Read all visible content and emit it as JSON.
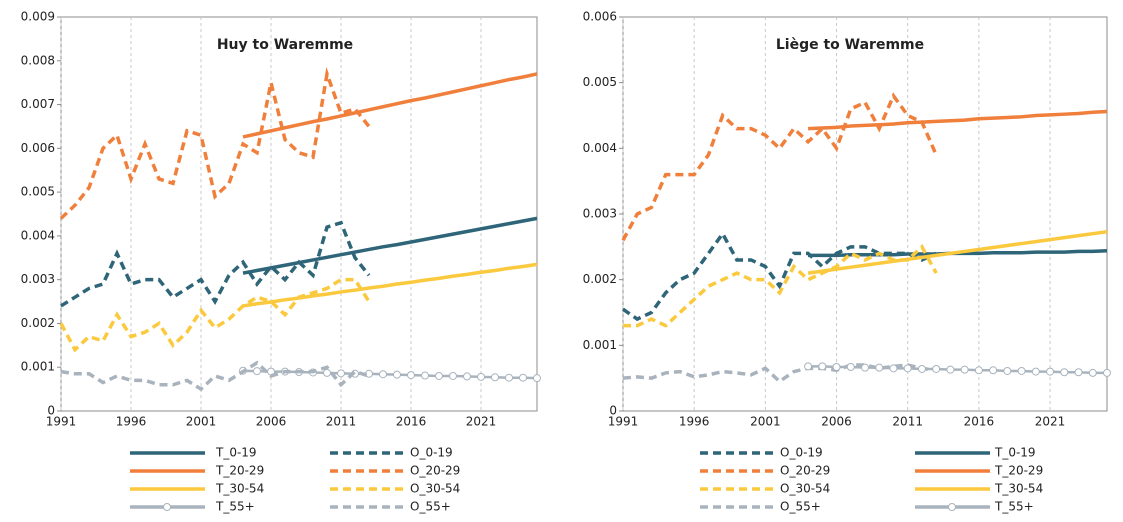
{
  "chart_data": [
    {
      "type": "line",
      "title": "Huy to Waremme",
      "x": [
        1991,
        1992,
        1993,
        1994,
        1995,
        1996,
        1997,
        1998,
        1999,
        2000,
        2001,
        2002,
        2003,
        2004,
        2005,
        2006,
        2007,
        2008,
        2009,
        2010,
        2011,
        2012,
        2013,
        2014,
        2015,
        2016,
        2017,
        2018,
        2019,
        2020,
        2021,
        2022,
        2023,
        2024,
        2025
      ],
      "xlim": [
        1991,
        2025
      ],
      "xticks": [
        1991,
        1996,
        2001,
        2006,
        2011,
        2016,
        2021
      ],
      "ylim": [
        0,
        0.009
      ],
      "yticks": [
        0,
        0.001,
        0.002,
        0.003,
        0.004,
        0.005,
        0.006,
        0.007,
        0.008,
        0.009
      ],
      "grid": "x",
      "series": [
        {
          "name": "T_0-19",
          "color": "#2f6579",
          "style": "solid",
          "values": [
            null,
            null,
            null,
            null,
            null,
            null,
            null,
            null,
            null,
            null,
            null,
            null,
            null,
            0.00315,
            0.00321,
            0.00327,
            0.00333,
            0.00339,
            0.00345,
            0.00351,
            0.00357,
            0.00363,
            0.00369,
            0.00375,
            0.0038,
            0.00386,
            0.00392,
            0.00398,
            0.00404,
            0.0041,
            0.00416,
            0.00422,
            0.00428,
            0.00434,
            0.0044
          ]
        },
        {
          "name": "O_0-19",
          "color": "#2f6579",
          "style": "dashed",
          "values": [
            0.0024,
            0.0026,
            0.0028,
            0.0029,
            0.0036,
            0.0029,
            0.003,
            0.003,
            0.0026,
            0.0028,
            0.003,
            0.0025,
            0.0031,
            0.0034,
            0.0029,
            0.0033,
            0.003,
            0.0034,
            0.0031,
            0.0042,
            0.0043,
            0.0035,
            0.0031,
            null,
            null,
            null,
            null,
            null,
            null,
            null,
            null,
            null,
            null,
            null,
            null
          ]
        },
        {
          "name": "T_20-29",
          "color": "#f07f3c",
          "style": "solid",
          "values": [
            null,
            null,
            null,
            null,
            null,
            null,
            null,
            null,
            null,
            null,
            null,
            null,
            null,
            0.00626,
            0.00633,
            0.0064,
            0.00647,
            0.00654,
            0.00661,
            0.00667,
            0.00674,
            0.00681,
            0.00688,
            0.00695,
            0.00702,
            0.00709,
            0.00715,
            0.00722,
            0.00729,
            0.00736,
            0.00743,
            0.0075,
            0.00757,
            0.00763,
            0.0077
          ]
        },
        {
          "name": "O_20-29",
          "color": "#f07f3c",
          "style": "dashed",
          "values": [
            0.0044,
            0.0047,
            0.0051,
            0.006,
            0.0063,
            0.0053,
            0.0061,
            0.0053,
            0.0052,
            0.0064,
            0.0063,
            0.0049,
            0.0052,
            0.0061,
            0.0059,
            0.0075,
            0.0062,
            0.0059,
            0.0058,
            0.0077,
            0.0068,
            0.0069,
            0.0065,
            null,
            null,
            null,
            null,
            null,
            null,
            null,
            null,
            null,
            null,
            null,
            null
          ]
        },
        {
          "name": "T_30-54",
          "color": "#fbc93d",
          "style": "solid",
          "values": [
            null,
            null,
            null,
            null,
            null,
            null,
            null,
            null,
            null,
            null,
            null,
            null,
            null,
            0.0024,
            0.00245,
            0.00249,
            0.00254,
            0.00258,
            0.00263,
            0.00267,
            0.00272,
            0.00276,
            0.00281,
            0.00285,
            0.0029,
            0.00294,
            0.00299,
            0.00303,
            0.00308,
            0.00312,
            0.00317,
            0.00321,
            0.00326,
            0.0033,
            0.00335
          ]
        },
        {
          "name": "O_30-54",
          "color": "#fbc93d",
          "style": "dashed",
          "values": [
            0.002,
            0.0014,
            0.0017,
            0.0016,
            0.0022,
            0.0017,
            0.0018,
            0.002,
            0.0015,
            0.0018,
            0.0023,
            0.0019,
            0.0021,
            0.0024,
            0.0026,
            0.0025,
            0.0022,
            0.0026,
            0.0027,
            0.0028,
            0.003,
            0.003,
            0.0025,
            null,
            null,
            null,
            null,
            null,
            null,
            null,
            null,
            null,
            null,
            null,
            null
          ]
        },
        {
          "name": "T_55+",
          "color": "#a9b3bd",
          "style": "marker",
          "values": [
            null,
            null,
            null,
            null,
            null,
            null,
            null,
            null,
            null,
            null,
            null,
            null,
            null,
            0.00092,
            0.00091,
            0.0009,
            0.0009,
            0.00089,
            0.00088,
            0.00087,
            0.00086,
            0.00085,
            0.00085,
            0.00084,
            0.00083,
            0.00082,
            0.00081,
            0.0008,
            0.0008,
            0.00079,
            0.00078,
            0.00077,
            0.00076,
            0.00076,
            0.00075
          ]
        },
        {
          "name": "O_55+",
          "color": "#a9b3bd",
          "style": "dashed",
          "values": [
            0.0009,
            0.00085,
            0.00085,
            0.00065,
            0.0008,
            0.0007,
            0.0007,
            0.0006,
            0.0006,
            0.0007,
            0.0005,
            0.0008,
            0.0007,
            0.0009,
            0.0011,
            0.0008,
            0.0009,
            0.0009,
            0.0009,
            0.001,
            0.0006,
            0.0009,
            0.0008,
            null,
            null,
            null,
            null,
            null,
            null,
            null,
            null,
            null,
            null,
            null,
            null
          ]
        }
      ]
    },
    {
      "type": "line",
      "title": "Liège to Waremme",
      "x": [
        1991,
        1992,
        1993,
        1994,
        1995,
        1996,
        1997,
        1998,
        1999,
        2000,
        2001,
        2002,
        2003,
        2004,
        2005,
        2006,
        2007,
        2008,
        2009,
        2010,
        2011,
        2012,
        2013,
        2014,
        2015,
        2016,
        2017,
        2018,
        2019,
        2020,
        2021,
        2022,
        2023,
        2024,
        2025
      ],
      "xlim": [
        1991,
        2025
      ],
      "xticks": [
        1991,
        1996,
        2001,
        2006,
        2011,
        2016,
        2021
      ],
      "ylim": [
        0,
        0.006
      ],
      "yticks": [
        0,
        0.001,
        0.002,
        0.003,
        0.004,
        0.005,
        0.006
      ],
      "grid": "x",
      "series": [
        {
          "name": "O_0-19",
          "color": "#2f6579",
          "style": "dashed",
          "values": [
            0.00155,
            0.0014,
            0.0015,
            0.0018,
            0.002,
            0.0021,
            0.0024,
            0.0027,
            0.0023,
            0.0023,
            0.0022,
            0.0019,
            0.0024,
            0.0024,
            0.0022,
            0.0024,
            0.0025,
            0.0025,
            0.0024,
            0.0024,
            0.0024,
            0.0023,
            0.0024,
            null,
            null,
            null,
            null,
            null,
            null,
            null,
            null,
            null,
            null,
            null,
            null
          ]
        },
        {
          "name": "T_0-19",
          "color": "#2f6579",
          "style": "solid",
          "values": [
            null,
            null,
            null,
            null,
            null,
            null,
            null,
            null,
            null,
            null,
            null,
            null,
            null,
            0.00237,
            0.00237,
            0.00237,
            0.00238,
            0.00238,
            0.00238,
            0.00238,
            0.00239,
            0.00239,
            0.00239,
            0.0024,
            0.0024,
            0.0024,
            0.00241,
            0.00241,
            0.00241,
            0.00242,
            0.00242,
            0.00242,
            0.00243,
            0.00243,
            0.00244
          ]
        },
        {
          "name": "O_20-29",
          "color": "#f07f3c",
          "style": "dashed",
          "values": [
            0.0026,
            0.003,
            0.0031,
            0.0036,
            0.0036,
            0.0036,
            0.0039,
            0.0045,
            0.0043,
            0.0043,
            0.0042,
            0.004,
            0.0043,
            0.0041,
            0.0043,
            0.004,
            0.0046,
            0.0047,
            0.0043,
            0.0048,
            0.0045,
            0.0044,
            0.0039,
            null,
            null,
            null,
            null,
            null,
            null,
            null,
            null,
            null,
            null,
            null,
            null
          ]
        },
        {
          "name": "T_20-29",
          "color": "#f07f3c",
          "style": "solid",
          "values": [
            null,
            null,
            null,
            null,
            null,
            null,
            null,
            null,
            null,
            null,
            null,
            null,
            null,
            0.0043,
            0.00431,
            0.00432,
            0.00434,
            0.00435,
            0.00436,
            0.00437,
            0.00439,
            0.0044,
            0.00441,
            0.00442,
            0.00443,
            0.00445,
            0.00446,
            0.00447,
            0.00448,
            0.0045,
            0.00451,
            0.00452,
            0.00453,
            0.00455,
            0.00456
          ]
        },
        {
          "name": "O_30-54",
          "color": "#fbc93d",
          "style": "dashed",
          "values": [
            0.0013,
            0.0013,
            0.0014,
            0.0013,
            0.0015,
            0.0017,
            0.0019,
            0.002,
            0.0021,
            0.002,
            0.002,
            0.0018,
            0.0022,
            0.002,
            0.0021,
            0.0022,
            0.0024,
            0.0023,
            0.0024,
            0.0023,
            0.0023,
            0.0025,
            0.0021,
            null,
            null,
            null,
            null,
            null,
            null,
            null,
            null,
            null,
            null,
            null,
            null
          ]
        },
        {
          "name": "T_30-54",
          "color": "#fbc93d",
          "style": "solid",
          "values": [
            null,
            null,
            null,
            null,
            null,
            null,
            null,
            null,
            null,
            null,
            null,
            null,
            null,
            0.0021,
            0.00213,
            0.00216,
            0.00219,
            0.00222,
            0.00225,
            0.00228,
            0.00231,
            0.00234,
            0.00237,
            0.0024,
            0.00243,
            0.00246,
            0.00249,
            0.00252,
            0.00255,
            0.00258,
            0.00261,
            0.00264,
            0.00267,
            0.0027,
            0.00273
          ]
        },
        {
          "name": "O_55+",
          "color": "#a9b3bd",
          "style": "dashed",
          "values": [
            0.0005,
            0.00052,
            0.0005,
            0.00058,
            0.0006,
            0.00052,
            0.00055,
            0.0006,
            0.00058,
            0.00055,
            0.00065,
            0.00045,
            0.0006,
            0.00065,
            0.00065,
            0.00062,
            0.0007,
            0.0007,
            0.00065,
            0.00068,
            0.0007,
            0.00065,
            0.00062,
            null,
            null,
            null,
            null,
            null,
            null,
            null,
            null,
            null,
            null,
            null,
            null
          ]
        },
        {
          "name": "T_55+",
          "color": "#a9b3bd",
          "style": "marker",
          "values": [
            null,
            null,
            null,
            null,
            null,
            null,
            null,
            null,
            null,
            null,
            null,
            null,
            null,
            0.00068,
            0.00068,
            0.00067,
            0.00067,
            0.00066,
            0.00066,
            0.00065,
            0.00065,
            0.00064,
            0.00064,
            0.00063,
            0.00063,
            0.00062,
            0.00062,
            0.00061,
            0.00061,
            0.0006,
            0.0006,
            0.00059,
            0.00059,
            0.00058,
            0.00058
          ]
        }
      ]
    }
  ]
}
